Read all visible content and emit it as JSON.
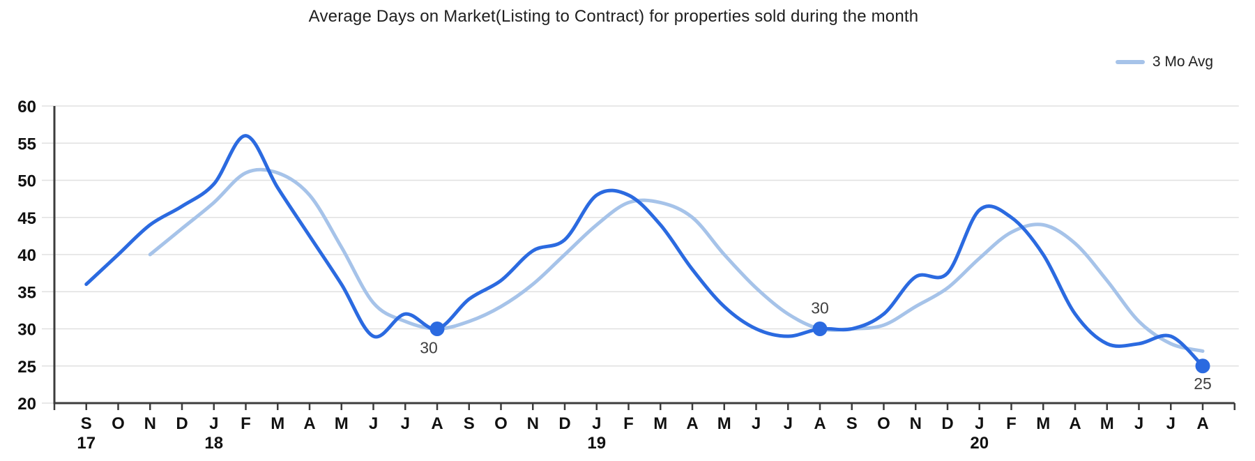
{
  "chart_data": {
    "type": "line",
    "title": "Average Days on Market(Listing to Contract) for properties sold during the month",
    "x": {
      "months": [
        "S",
        "O",
        "N",
        "D",
        "J",
        "F",
        "M",
        "A",
        "M",
        "J",
        "J",
        "A",
        "S",
        "O",
        "N",
        "D",
        "J",
        "F",
        "M",
        "A",
        "M",
        "J",
        "J",
        "A",
        "S",
        "O",
        "N",
        "D",
        "J",
        "F",
        "M",
        "A",
        "M",
        "J",
        "J",
        "A"
      ],
      "years": [
        {
          "month_index": 0,
          "label": "17"
        },
        {
          "month_index": 4,
          "label": "18"
        },
        {
          "month_index": 16,
          "label": "19"
        },
        {
          "month_index": 28,
          "label": "20"
        }
      ]
    },
    "ylim": [
      20,
      60
    ],
    "yticks": [
      20,
      25,
      30,
      35,
      40,
      45,
      50,
      55,
      60
    ],
    "grid": true,
    "smooth": true,
    "legend": {
      "position": "top-right",
      "entries": [
        "3 Mo Avg"
      ]
    },
    "style": {
      "grid_color": "#e0e0e0",
      "axis_color": "#3c3c3c",
      "tick_label_color": "#111111",
      "annotation_color": "#404040"
    },
    "series": [
      {
        "name": "Average Days on Market",
        "color": "#2b6ae0",
        "line_width": 5,
        "start_index": 0,
        "values": [
          36,
          40,
          44,
          46.5,
          49.5,
          56,
          49,
          42.5,
          36,
          29,
          32,
          30,
          34,
          36.5,
          40.5,
          42,
          48,
          48,
          44,
          38,
          33,
          30,
          29,
          30,
          30,
          32,
          37,
          37.5,
          46,
          45,
          40,
          32,
          28,
          28,
          29,
          25
        ],
        "point_labels": [
          {
            "month_index": 11,
            "label": "30",
            "position": "below-left"
          },
          {
            "month_index": 23,
            "label": "30",
            "position": "above"
          },
          {
            "month_index": 35,
            "label": "25",
            "position": "below"
          }
        ]
      },
      {
        "name": "3 Mo Avg",
        "color": "#a6c3e9",
        "line_width": 5,
        "start_index": 2,
        "values": [
          40,
          43.5,
          47,
          51,
          51,
          48,
          41,
          33.5,
          31,
          30,
          31,
          33,
          36,
          40,
          44,
          47,
          47,
          45,
          40,
          35.5,
          32,
          30,
          30,
          30.5,
          33,
          35.5,
          39.5,
          43,
          44,
          41.5,
          36.5,
          31,
          28,
          27
        ]
      }
    ]
  }
}
